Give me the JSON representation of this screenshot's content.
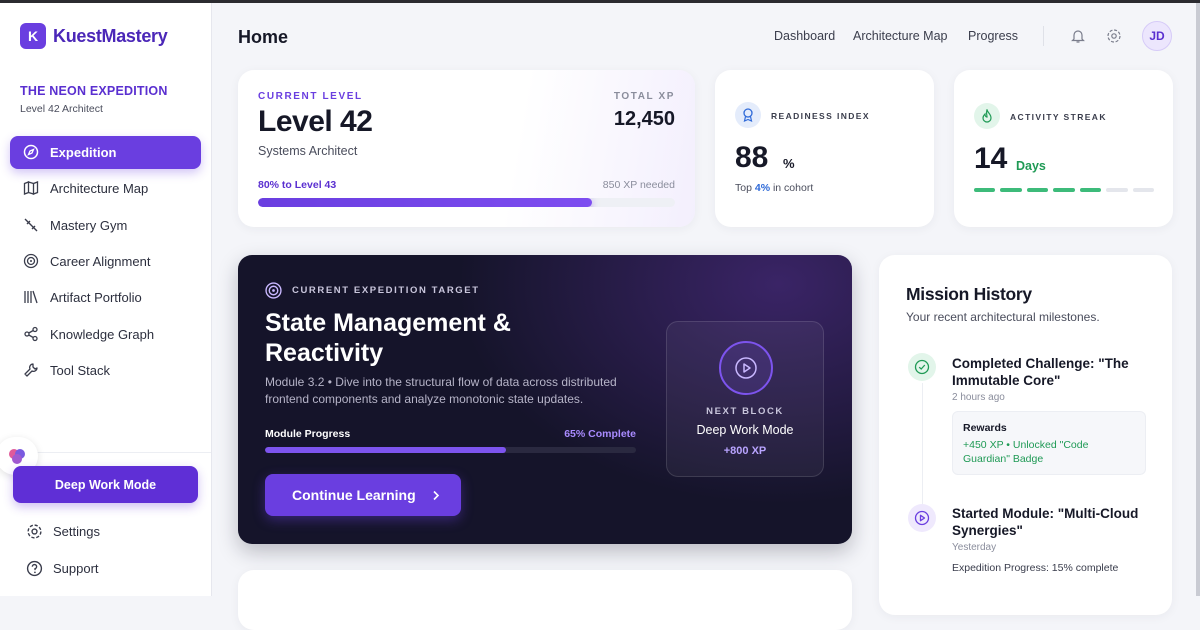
{
  "sidebar": {
    "logo_letter": "K",
    "brand": "KuestMastery",
    "expedition": "THE NEON EXPEDITION",
    "rank": "Level 42 Architect",
    "nav": [
      "Expedition",
      "Architecture Map",
      "Mastery Gym",
      "Career Alignment",
      "Artifact Portfolio",
      "Knowledge Graph",
      "Tool Stack"
    ],
    "cta": "Deep Work Mode",
    "footer": [
      "Settings",
      "Support"
    ]
  },
  "header": {
    "title": "Home",
    "links": [
      "Dashboard",
      "Architecture Map",
      "Progress"
    ],
    "avatar": "JD"
  },
  "level_card": {
    "label": "CURRENT LEVEL",
    "level": "Level 42",
    "role": "Systems Architect",
    "xp_label": "TOTAL XP",
    "xp": "12,450",
    "progress": {
      "value": 80,
      "label": "80% to Level 43"
    },
    "remaining": "850 XP needed"
  },
  "readiness": {
    "label": "READINESS INDEX",
    "value": "88",
    "unit": "%",
    "note_prefix": "Top",
    "note_highlight": "4%",
    "note_suffix": "in cohort"
  },
  "streak": {
    "label": "ACTIVITY STREAK",
    "value": "14",
    "unit": "Days"
  },
  "target": {
    "label": "CURRENT EXPEDITION TARGET",
    "title": "State Management & Reactivity",
    "description": "Module 3.2 • Dive into the structural flow of data across distributed frontend components and analyze monotonic state updates.",
    "progress_label": "Module Progress",
    "progress": {
      "value": 65,
      "label": "65% Complete"
    },
    "button": "Continue Learning"
  },
  "next_block": {
    "label": "NEXT BLOCK",
    "title": "Deep Work Mode",
    "reward": "+800 XP"
  },
  "mission_history": {
    "title": "Mission History",
    "subtitle": "Your recent architectural milestones.",
    "items": [
      {
        "title": "Completed Challenge: \"The Immutable Core\"",
        "time": "2 hours ago",
        "rewards_label": "Rewards",
        "rewards": "+450 XP • Unlocked \"Code Guardian\" Badge"
      },
      {
        "title": "Started Module: \"Multi-Cloud Synergies\"",
        "time": "Yesterday",
        "detail": "Expedition Progress: 15% complete"
      }
    ]
  }
}
